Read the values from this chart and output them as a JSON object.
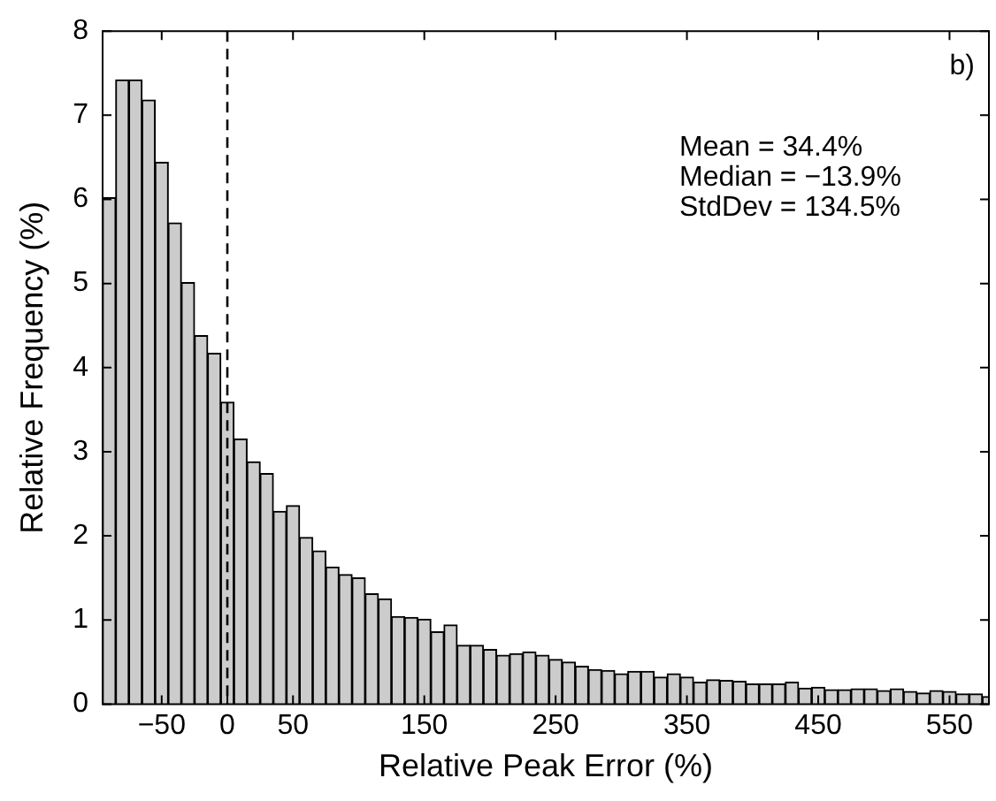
{
  "chart_data": {
    "type": "histogram",
    "xlabel": "Relative Peak Error (%)",
    "ylabel": "Relative Frequency (%)",
    "bins": [
      -95,
      -85,
      -75,
      -65,
      -55,
      -45,
      -35,
      -25,
      -15,
      -5,
      5,
      15,
      25,
      35,
      45,
      55,
      65,
      75,
      85,
      95,
      105,
      115,
      125,
      135,
      145,
      155,
      165,
      175,
      185,
      195,
      205,
      215,
      225,
      235,
      245,
      255,
      265,
      275,
      285,
      295,
      305,
      315,
      325,
      335,
      345,
      355,
      365,
      375,
      385,
      395,
      405,
      415,
      425,
      435,
      445,
      455,
      465,
      475,
      485,
      495,
      505,
      515,
      525,
      535,
      545,
      555,
      565,
      575,
      585
    ],
    "values": [
      6.02,
      7.42,
      7.42,
      7.18,
      6.44,
      5.72,
      5.01,
      4.38,
      4.17,
      3.59,
      3.15,
      2.88,
      2.74,
      2.29,
      2.36,
      1.98,
      1.82,
      1.63,
      1.54,
      1.5,
      1.31,
      1.25,
      1.04,
      1.03,
      1.01,
      0.86,
      0.94,
      0.7,
      0.7,
      0.65,
      0.58,
      0.6,
      0.62,
      0.58,
      0.53,
      0.5,
      0.45,
      0.41,
      0.4,
      0.36,
      0.39,
      0.39,
      0.32,
      0.36,
      0.32,
      0.26,
      0.29,
      0.28,
      0.27,
      0.24,
      0.24,
      0.24,
      0.26,
      0.19,
      0.2,
      0.17,
      0.17,
      0.18,
      0.18,
      0.16,
      0.18,
      0.15,
      0.13,
      0.16,
      0.15,
      0.12,
      0.12,
      0.09
    ],
    "color": "#cccccc",
    "xlim": [
      -95,
      580
    ],
    "xticks": [
      {
        "value": -50,
        "label": "−50"
      },
      0,
      50,
      150,
      250,
      350,
      450,
      550
    ],
    "ylim": [
      0,
      8
    ],
    "yticks": [
      0,
      1,
      2,
      3,
      4,
      5,
      6,
      7,
      8
    ],
    "ref_lines": [
      {
        "axis": "x",
        "value": 0,
        "color": "#000000",
        "line_style": "dashed"
      }
    ],
    "annotations": [
      "b)",
      "Mean = 34.4%",
      "Median = −13.9%",
      "StdDev = 134.5%"
    ],
    "grid": false,
    "legend": false
  }
}
